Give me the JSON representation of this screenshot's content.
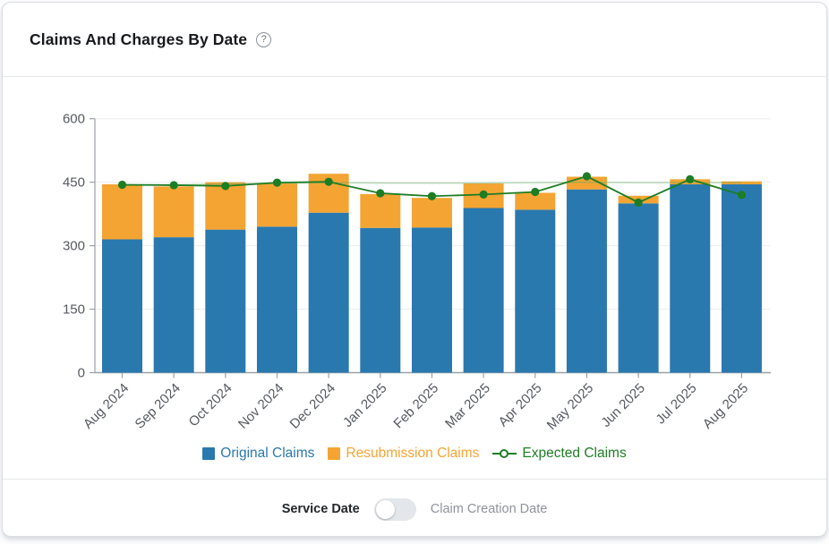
{
  "header": {
    "title": "Claims And Charges By Date",
    "help_glyph": "?"
  },
  "chart_data": {
    "type": "bar",
    "subtype": "stacked-bars-with-line-overlay",
    "title": "Claims And Charges By Date",
    "categories": [
      "Aug 2024",
      "Sep 2024",
      "Oct 2024",
      "Nov 2024",
      "Dec 2024",
      "Jan 2025",
      "Feb 2025",
      "Mar 2025",
      "Apr 2025",
      "May 2025",
      "Jun 2025",
      "Jul 2025",
      "Aug 2025"
    ],
    "series": [
      {
        "name": "Original Claims",
        "type": "bar",
        "color": "#2979af",
        "values": [
          315,
          320,
          338,
          345,
          378,
          342,
          343,
          389,
          385,
          433,
          400,
          445,
          445
        ]
      },
      {
        "name": "Resubmission Claims",
        "type": "bar",
        "color": "#f4a433",
        "values": [
          130,
          120,
          112,
          102,
          92,
          80,
          70,
          58,
          40,
          30,
          18,
          12,
          7
        ]
      },
      {
        "name": "Expected Claims",
        "type": "line",
        "color": "#1d7d24",
        "values": [
          444,
          443,
          441,
          449,
          451,
          424,
          417,
          421,
          427,
          464,
          402,
          457,
          420
        ]
      }
    ],
    "stacked_totals": [
      445,
      440,
      450,
      447,
      470,
      422,
      413,
      447,
      425,
      463,
      418,
      457,
      452
    ],
    "trend_line": {
      "color": "rgba(102,170,102,0.45)",
      "values": [
        443,
        444,
        446,
        448,
        449,
        448,
        448,
        448,
        449,
        450,
        449,
        449,
        449
      ]
    },
    "ylim": [
      0,
      600
    ],
    "yticks": [
      0,
      150,
      300,
      450,
      600
    ],
    "xlabel": "",
    "ylabel": "",
    "grid": true,
    "legend_position": "bottom",
    "axis_color": "#9ba1a8",
    "grid_color": "#edeef0"
  },
  "footer": {
    "left_label": "Service Date",
    "right_label": "Claim Creation Date",
    "toggle_position": "left",
    "selected": "Service Date"
  }
}
